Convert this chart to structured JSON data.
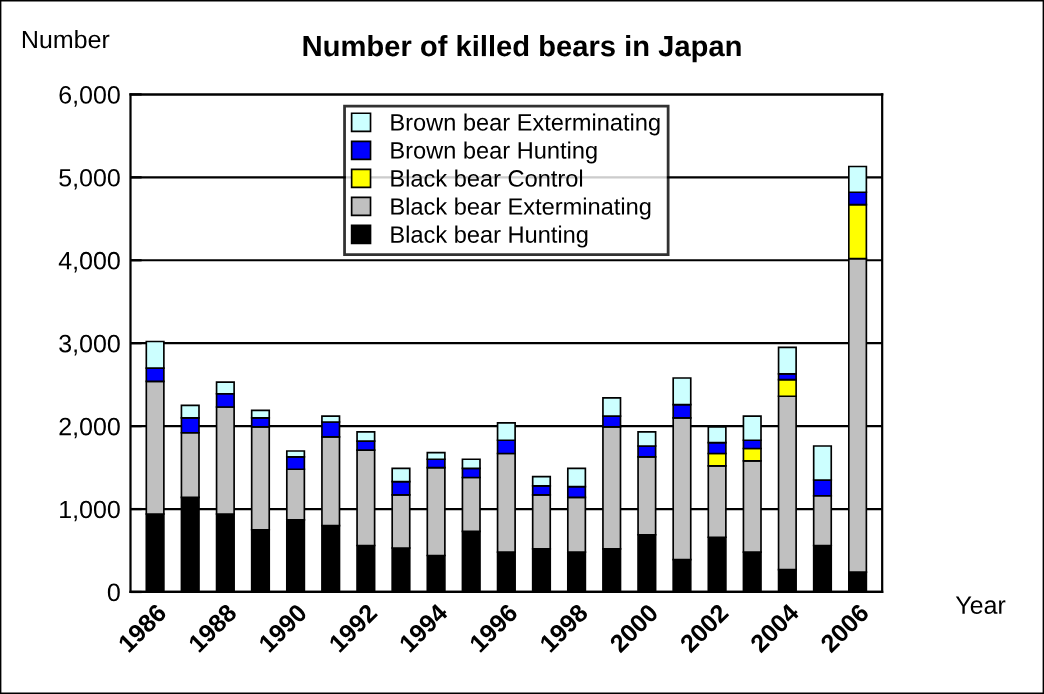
{
  "chart_data": {
    "type": "bar",
    "stacked": true,
    "title": "Number of killed bears in Japan",
    "xlabel": "Year",
    "ylabel": "Number",
    "categories": [
      "1986",
      null,
      "1988",
      null,
      "1990",
      null,
      "1992",
      null,
      "1994",
      null,
      "1996",
      null,
      "1998",
      null,
      "2000",
      null,
      "2002",
      null,
      "2004",
      null,
      "2006"
    ],
    "series": [
      {
        "name": "Black bear Hunting",
        "color": "#000000",
        "values": [
          940,
          1140,
          940,
          750,
          870,
          800,
          560,
          530,
          440,
          730,
          480,
          520,
          480,
          520,
          690,
          390,
          660,
          480,
          270,
          560,
          240
        ]
      },
      {
        "name": "Black bear Exterminating",
        "color": "#c0c0c0",
        "values": [
          1600,
          780,
          1290,
          1240,
          610,
          1070,
          1150,
          640,
          1060,
          650,
          1190,
          650,
          660,
          1470,
          940,
          1710,
          860,
          1100,
          2090,
          600,
          3780
        ]
      },
      {
        "name": "Black bear Control",
        "color": "#ffff00",
        "values": [
          null,
          null,
          null,
          null,
          null,
          null,
          null,
          null,
          null,
          null,
          null,
          null,
          null,
          null,
          null,
          null,
          150,
          150,
          200,
          null,
          650
        ]
      },
      {
        "name": "Brown bear Hunting",
        "color": "#0000ff",
        "values": [
          160,
          180,
          160,
          110,
          150,
          180,
          110,
          160,
          100,
          110,
          160,
          110,
          130,
          130,
          130,
          160,
          130,
          100,
          70,
          190,
          150
        ]
      },
      {
        "name": "Brown bear Exterminating",
        "color": "#ccffff",
        "values": [
          320,
          150,
          140,
          90,
          70,
          70,
          110,
          160,
          80,
          110,
          210,
          110,
          220,
          220,
          170,
          320,
          190,
          290,
          320,
          410,
          310
        ]
      }
    ],
    "ylim": [
      0,
      6000
    ],
    "yticks": [
      0,
      {
        "value": 1000,
        "label": "1,000"
      },
      {
        "value": 2000,
        "label": "2,000"
      },
      {
        "value": 3000,
        "label": "3,000"
      },
      {
        "value": 4000,
        "label": "4,000"
      },
      {
        "value": 5000,
        "label": "5,000"
      },
      {
        "value": 6000,
        "label": "6,000"
      }
    ],
    "grid": "y",
    "legend": "top"
  }
}
